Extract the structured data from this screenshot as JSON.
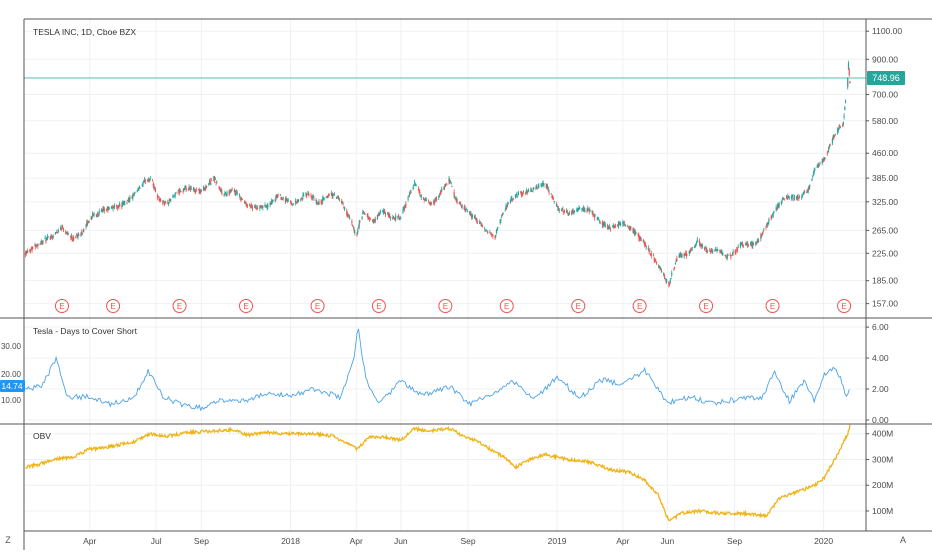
{
  "symbol_title": "TESLA INC, 1D, Cboe BZX",
  "colors": {
    "up": "#26a69a",
    "down": "#ef5350",
    "dtc_line": "#4da3e8",
    "dtc_badge": "#2196f3",
    "obv_line": "#f0b316",
    "price_badge": "#26a69a",
    "earnings": "#ef5350",
    "grid": "#eef1f4",
    "axis_text": "#4a4a4a",
    "border": "#555555"
  },
  "bottom_left_icon": "Z",
  "bottom_right_icon": "A",
  "chart_data": [
    {
      "type": "candlestick",
      "name": "price",
      "title": "TESLA INC, 1D, Cboe BZX",
      "scale": "log",
      "ylim": [
        150,
        1150
      ],
      "y_ticks": [
        "1100.00",
        "900.00",
        "700.00",
        "580.00",
        "460.00",
        "385.00",
        "325.00",
        "265.00",
        "225.00",
        "185.00",
        "157.00"
      ],
      "last_price": "748.96",
      "earnings_marker": "E",
      "earnings_dates": [
        "2017-02-22",
        "2017-05-03",
        "2017-08-02",
        "2017-11-01",
        "2018-02-07",
        "2018-05-02",
        "2018-08-01",
        "2018-10-24",
        "2019-01-30",
        "2019-04-24",
        "2019-07-24",
        "2019-10-23",
        "2020-01-29"
      ],
      "price_path": [
        [
          "2017-01-03",
          226
        ],
        [
          "2017-01-20",
          240
        ],
        [
          "2017-02-10",
          255
        ],
        [
          "2017-02-22",
          272
        ],
        [
          "2017-03-08",
          250
        ],
        [
          "2017-03-20",
          258
        ],
        [
          "2017-04-05",
          295
        ],
        [
          "2017-04-28",
          310
        ],
        [
          "2017-05-15",
          318
        ],
        [
          "2017-06-01",
          340
        ],
        [
          "2017-06-15",
          375
        ],
        [
          "2017-06-23",
          385
        ],
        [
          "2017-07-05",
          330
        ],
        [
          "2017-07-15",
          320
        ],
        [
          "2017-08-01",
          350
        ],
        [
          "2017-08-15",
          356
        ],
        [
          "2017-09-01",
          350
        ],
        [
          "2017-09-18",
          385
        ],
        [
          "2017-10-01",
          340
        ],
        [
          "2017-10-15",
          352
        ],
        [
          "2017-11-01",
          320
        ],
        [
          "2017-11-15",
          310
        ],
        [
          "2017-12-01",
          315
        ],
        [
          "2017-12-15",
          340
        ],
        [
          "2018-01-05",
          320
        ],
        [
          "2018-01-25",
          345
        ],
        [
          "2018-02-08",
          320
        ],
        [
          "2018-02-25",
          345
        ],
        [
          "2018-03-10",
          330
        ],
        [
          "2018-03-25",
          280
        ],
        [
          "2018-04-01",
          255
        ],
        [
          "2018-04-10",
          300
        ],
        [
          "2018-04-25",
          280
        ],
        [
          "2018-05-05",
          305
        ],
        [
          "2018-05-20",
          290
        ],
        [
          "2018-06-01",
          290
        ],
        [
          "2018-06-12",
          340
        ],
        [
          "2018-06-20",
          370
        ],
        [
          "2018-07-01",
          330
        ],
        [
          "2018-07-15",
          320
        ],
        [
          "2018-08-07",
          380
        ],
        [
          "2018-08-15",
          330
        ],
        [
          "2018-09-01",
          300
        ],
        [
          "2018-09-10",
          290
        ],
        [
          "2018-09-28",
          260
        ],
        [
          "2018-10-08",
          255
        ],
        [
          "2018-10-25",
          320
        ],
        [
          "2018-11-10",
          345
        ],
        [
          "2018-11-25",
          350
        ],
        [
          "2018-12-15",
          370
        ],
        [
          "2019-01-02",
          310
        ],
        [
          "2019-01-18",
          300
        ],
        [
          "2019-02-01",
          310
        ],
        [
          "2019-02-15",
          305
        ],
        [
          "2019-03-01",
          280
        ],
        [
          "2019-03-15",
          270
        ],
        [
          "2019-04-01",
          280
        ],
        [
          "2019-04-15",
          265
        ],
        [
          "2019-05-01",
          240
        ],
        [
          "2019-05-15",
          215
        ],
        [
          "2019-06-03",
          180
        ],
        [
          "2019-06-15",
          220
        ],
        [
          "2019-07-01",
          225
        ],
        [
          "2019-07-12",
          245
        ],
        [
          "2019-07-25",
          230
        ],
        [
          "2019-08-10",
          228
        ],
        [
          "2019-08-25",
          218
        ],
        [
          "2019-09-10",
          240
        ],
        [
          "2019-10-01",
          240
        ],
        [
          "2019-10-24",
          300
        ],
        [
          "2019-11-10",
          340
        ],
        [
          "2019-11-25",
          333
        ],
        [
          "2019-12-10",
          350
        ],
        [
          "2019-12-20",
          410
        ],
        [
          "2020-01-02",
          440
        ],
        [
          "2020-01-15",
          520
        ],
        [
          "2020-01-28",
          570
        ],
        [
          "2020-02-03",
          780
        ],
        [
          "2020-02-04",
          880
        ],
        [
          "2020-02-06",
          748.96
        ]
      ]
    },
    {
      "type": "line",
      "name": "Tesla - Days to Cover Short",
      "title": "Tesla - Days to Cover Short",
      "ylim": [
        0,
        6.2
      ],
      "y_ticks_right": [
        "6.00",
        "4.00",
        "2.00",
        "0.00"
      ],
      "y_ticks_left": [
        "30.00",
        "20.00",
        "10.00"
      ],
      "last_value_badge": "14.74",
      "values_path": [
        [
          "2017-01-03",
          2.0
        ],
        [
          "2017-01-25",
          2.2
        ],
        [
          "2017-02-14",
          3.9
        ],
        [
          "2017-03-01",
          1.5
        ],
        [
          "2017-04-01",
          1.5
        ],
        [
          "2017-05-01",
          1.0
        ],
        [
          "2017-06-01",
          1.5
        ],
        [
          "2017-06-20",
          3.2
        ],
        [
          "2017-07-10",
          1.5
        ],
        [
          "2017-08-05",
          1.0
        ],
        [
          "2017-09-01",
          0.8
        ],
        [
          "2017-10-01",
          1.3
        ],
        [
          "2017-11-01",
          1.3
        ],
        [
          "2017-12-01",
          1.8
        ],
        [
          "2018-01-01",
          1.5
        ],
        [
          "2018-02-01",
          2.0
        ],
        [
          "2018-03-10",
          1.5
        ],
        [
          "2018-03-28",
          3.8
        ],
        [
          "2018-04-03",
          6.0
        ],
        [
          "2018-04-15",
          2.5
        ],
        [
          "2018-05-01",
          1.0
        ],
        [
          "2018-06-01",
          2.5
        ],
        [
          "2018-07-01",
          1.6
        ],
        [
          "2018-08-08",
          2.2
        ],
        [
          "2018-09-01",
          1.0
        ],
        [
          "2018-10-01",
          1.6
        ],
        [
          "2018-11-01",
          2.5
        ],
        [
          "2018-12-01",
          1.3
        ],
        [
          "2019-01-01",
          2.8
        ],
        [
          "2019-02-01",
          1.4
        ],
        [
          "2019-03-01",
          2.6
        ],
        [
          "2019-04-01",
          2.3
        ],
        [
          "2019-05-01",
          3.2
        ],
        [
          "2019-06-01",
          1.1
        ],
        [
          "2019-07-01",
          1.5
        ],
        [
          "2019-08-01",
          1.1
        ],
        [
          "2019-09-01",
          1.3
        ],
        [
          "2019-10-10",
          1.5
        ],
        [
          "2019-10-25",
          3.2
        ],
        [
          "2019-11-15",
          1.2
        ],
        [
          "2019-12-05",
          2.5
        ],
        [
          "2019-12-20",
          1.2
        ],
        [
          "2020-01-01",
          3.0
        ],
        [
          "2020-01-15",
          3.3
        ],
        [
          "2020-01-25",
          2.6
        ],
        [
          "2020-02-01",
          1.5
        ],
        [
          "2020-02-06",
          2.2
        ]
      ]
    },
    {
      "type": "line",
      "name": "OBV",
      "title": "OBV",
      "unit": "M",
      "ylim": [
        30,
        430
      ],
      "y_ticks": [
        "400M",
        "300M",
        "200M",
        "100M"
      ],
      "values_path": [
        [
          "2017-01-03",
          270
        ],
        [
          "2017-01-20",
          280
        ],
        [
          "2017-02-10",
          300
        ],
        [
          "2017-03-10",
          310
        ],
        [
          "2017-04-01",
          340
        ],
        [
          "2017-05-01",
          350
        ],
        [
          "2017-06-01",
          370
        ],
        [
          "2017-06-23",
          400
        ],
        [
          "2017-07-15",
          390
        ],
        [
          "2017-08-15",
          405
        ],
        [
          "2017-09-15",
          410
        ],
        [
          "2017-10-15",
          415
        ],
        [
          "2017-11-01",
          395
        ],
        [
          "2017-12-01",
          405
        ],
        [
          "2018-01-01",
          400
        ],
        [
          "2018-02-01",
          400
        ],
        [
          "2018-03-01",
          390
        ],
        [
          "2018-04-02",
          340
        ],
        [
          "2018-04-20",
          390
        ],
        [
          "2018-05-15",
          385
        ],
        [
          "2018-06-01",
          375
        ],
        [
          "2018-06-20",
          420
        ],
        [
          "2018-07-05",
          410
        ],
        [
          "2018-08-08",
          420
        ],
        [
          "2018-08-25",
          390
        ],
        [
          "2018-09-15",
          370
        ],
        [
          "2018-10-01",
          340
        ],
        [
          "2018-10-20",
          310
        ],
        [
          "2018-11-05",
          270
        ],
        [
          "2018-11-25",
          300
        ],
        [
          "2018-12-15",
          320
        ],
        [
          "2019-01-15",
          300
        ],
        [
          "2019-02-15",
          290
        ],
        [
          "2019-03-15",
          260
        ],
        [
          "2019-04-10",
          250
        ],
        [
          "2019-05-01",
          220
        ],
        [
          "2019-05-20",
          160
        ],
        [
          "2019-06-03",
          60
        ],
        [
          "2019-06-20",
          90
        ],
        [
          "2019-07-15",
          100
        ],
        [
          "2019-08-15",
          90
        ],
        [
          "2019-09-15",
          90
        ],
        [
          "2019-10-01",
          85
        ],
        [
          "2019-10-15",
          80
        ],
        [
          "2019-11-01",
          150
        ],
        [
          "2019-12-01",
          180
        ],
        [
          "2019-12-20",
          200
        ],
        [
          "2020-01-02",
          230
        ],
        [
          "2020-01-20",
          320
        ],
        [
          "2020-02-03",
          400
        ],
        [
          "2020-02-06",
          430
        ]
      ]
    }
  ],
  "time_axis": {
    "start": "2017-01-01",
    "end": "2020-02-28",
    "ticks": [
      {
        "date": "2017-04-01",
        "label": "Apr"
      },
      {
        "date": "2017-07-01",
        "label": "Jul"
      },
      {
        "date": "2017-09-01",
        "label": "Sep"
      },
      {
        "date": "2018-01-01",
        "label": "2018"
      },
      {
        "date": "2018-04-01",
        "label": "Apr"
      },
      {
        "date": "2018-06-01",
        "label": "Jun"
      },
      {
        "date": "2018-09-01",
        "label": "Sep"
      },
      {
        "date": "2019-01-01",
        "label": "2019"
      },
      {
        "date": "2019-04-01",
        "label": "Apr"
      },
      {
        "date": "2019-06-01",
        "label": "Jun"
      },
      {
        "date": "2019-09-01",
        "label": "Sep"
      },
      {
        "date": "2020-01-01",
        "label": "2020"
      }
    ]
  }
}
